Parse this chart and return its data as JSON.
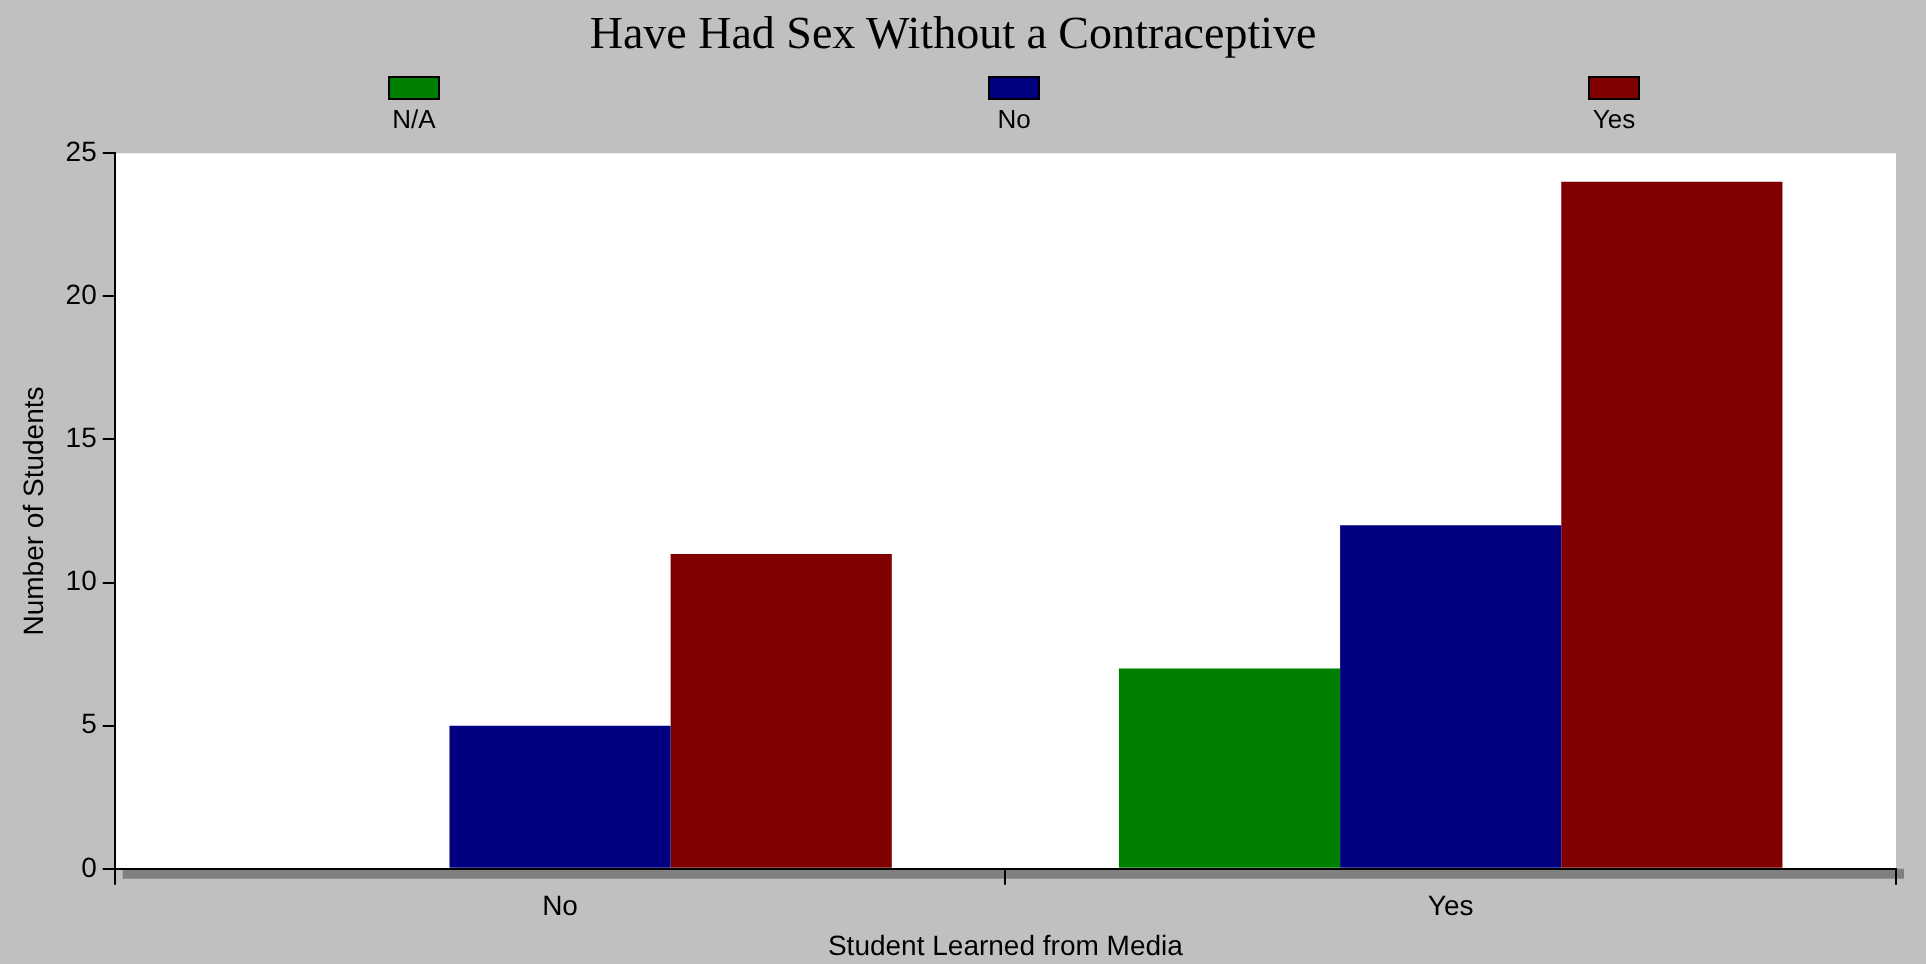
{
  "chart_data": {
    "type": "bar",
    "title": "Have Had Sex Without a Contraceptive",
    "xlabel": "Student Learned from Media",
    "ylabel": "Number of Students",
    "categories": [
      "No",
      "Yes"
    ],
    "series": [
      {
        "name": "N/A",
        "color": "#008000",
        "values": [
          0,
          7
        ]
      },
      {
        "name": "No",
        "color": "#000080",
        "values": [
          5,
          12
        ]
      },
      {
        "name": "Yes",
        "color": "#800000",
        "values": [
          11,
          24
        ]
      }
    ],
    "ylim": [
      0,
      25
    ],
    "yticks": [
      0,
      5,
      10,
      15,
      20,
      25
    ],
    "grid": false,
    "legend": "top"
  }
}
